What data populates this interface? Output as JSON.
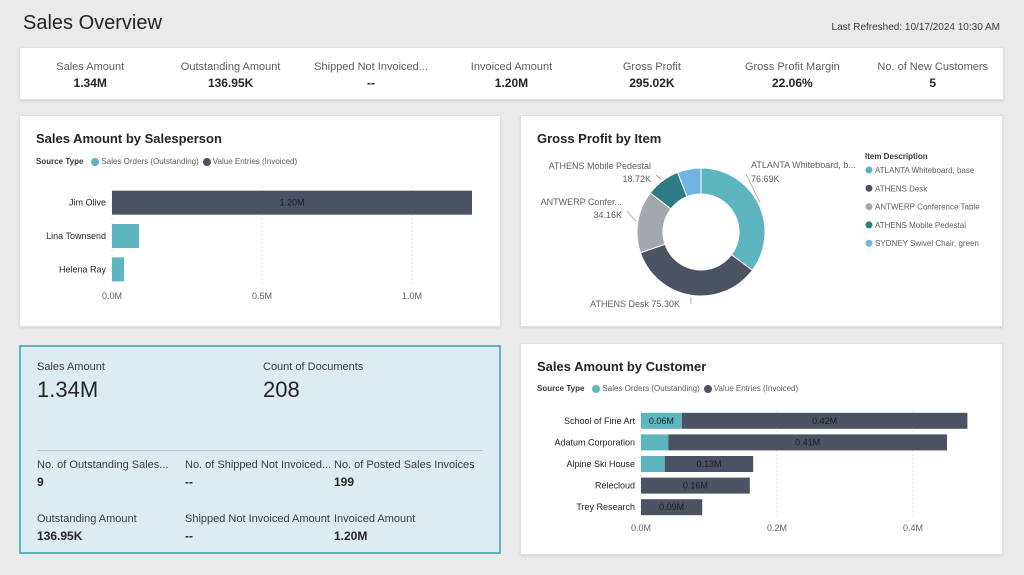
{
  "header": {
    "title": "Sales Overview",
    "last_refreshed": "Last Refreshed: 10/17/2024 10:30 AM"
  },
  "kpis": [
    {
      "label": "Sales Amount",
      "value": "1.34M"
    },
    {
      "label": "Outstanding Amount",
      "value": "136.95K"
    },
    {
      "label": "Shipped Not Invoiced...",
      "value": "--"
    },
    {
      "label": "Invoiced Amount",
      "value": "1.20M"
    },
    {
      "label": "Gross Profit",
      "value": "295.02K"
    },
    {
      "label": "Gross Profit Margin",
      "value": "22.06%"
    },
    {
      "label": "No. of New Customers",
      "value": "5"
    }
  ],
  "colors": {
    "outstanding": "#5cb5bf",
    "invoiced": "#4b5263",
    "athens_mobile": "#2f7b84",
    "antwerp": "#a3a8ae",
    "sydney": "#71b3e3"
  },
  "summary": {
    "sales_amount_label": "Sales Amount",
    "sales_amount_value": "1.34M",
    "count_docs_label": "Count of Documents",
    "count_docs_value": "208",
    "outstanding_sales_label": "No. of Outstanding Sales...",
    "outstanding_sales_value": "9",
    "shipped_not_invoiced_label": "No. of Shipped Not Invoiced...",
    "shipped_not_invoiced_value": "--",
    "posted_invoices_label": "No. of Posted Sales Invoices",
    "posted_invoices_value": "199",
    "outstanding_amount_label": "Outstanding Amount",
    "outstanding_amount_value": "136.95K",
    "shipped_not_invoiced_amount_label": "Shipped Not Invoiced Amount",
    "shipped_not_invoiced_amount_value": "--",
    "invoiced_amount_label": "Invoiced Amount",
    "invoiced_amount_value": "1.20M"
  },
  "chart_data": [
    {
      "type": "bar",
      "orientation": "horizontal",
      "stacked": true,
      "title": "Sales Amount by Salesperson",
      "legend_title": "Source Type",
      "legend_placement": "top-left",
      "categories": [
        "Jim Olive",
        "Lina Townsend",
        "Helena Ray"
      ],
      "series": [
        {
          "name": "Sales Orders (Outstanding)",
          "values": [
            0,
            0.09,
            0.04
          ],
          "data_labels": [
            "",
            "",
            ""
          ]
        },
        {
          "name": "Value Entries (Invoiced)",
          "values": [
            1.2,
            0,
            0
          ],
          "data_labels": [
            "1.20M",
            "",
            ""
          ]
        }
      ],
      "xlim": [
        0,
        1.35
      ],
      "x_ticks": [
        0,
        0.5,
        1.0
      ],
      "x_tick_labels": [
        "0.0M",
        "0.5M",
        "1.0M"
      ],
      "grid": true
    },
    {
      "type": "pie",
      "donut": true,
      "title": "Gross Profit by Item",
      "legend_title": "Item Description",
      "legend_placement": "right",
      "slices": [
        {
          "name": "ATLANTA Whiteboard, base",
          "value": 76.69,
          "label_name": "ATLANTA Whiteboard, b...",
          "label_value": "76.69K"
        },
        {
          "name": "ATHENS Desk",
          "value": 75.3,
          "label_name": "ATHENS Desk",
          "label_value": "75.30K"
        },
        {
          "name": "ANTWERP Conference Table",
          "value": 34.16,
          "label_name": "ANTWERP Confer...",
          "label_value": "34.16K"
        },
        {
          "name": "ATHENS Mobile Pedestal",
          "value": 18.72,
          "label_name": "ATHENS Mobile Pedestal",
          "label_value": "18.72K"
        },
        {
          "name": "SYDNEY Swivel Chair, green",
          "value": 13.0,
          "label_name": "",
          "label_value": ""
        }
      ]
    },
    {
      "type": "bar",
      "orientation": "horizontal",
      "stacked": true,
      "title": "Sales Amount by Customer",
      "legend_title": "Source Type",
      "legend_placement": "top-left",
      "categories": [
        "School of Fine Art",
        "Adatum Corporation",
        "Alpine Ski House",
        "Relecloud",
        "Trey Research"
      ],
      "series": [
        {
          "name": "Sales Orders (Outstanding)",
          "values": [
            0.06,
            0.04,
            0.035,
            0,
            0
          ],
          "data_labels": [
            "0.06M",
            "",
            "",
            "",
            ""
          ]
        },
        {
          "name": "Value Entries (Invoiced)",
          "values": [
            0.42,
            0.41,
            0.13,
            0.16,
            0.09
          ],
          "data_labels": [
            "0.42M",
            "0.41M",
            "0.13M",
            "0.16M",
            "0.09M"
          ]
        }
      ],
      "xlim": [
        0,
        0.5
      ],
      "x_ticks": [
        0,
        0.2,
        0.4
      ],
      "x_tick_labels": [
        "0.0M",
        "0.2M",
        "0.4M"
      ],
      "grid": true
    }
  ]
}
